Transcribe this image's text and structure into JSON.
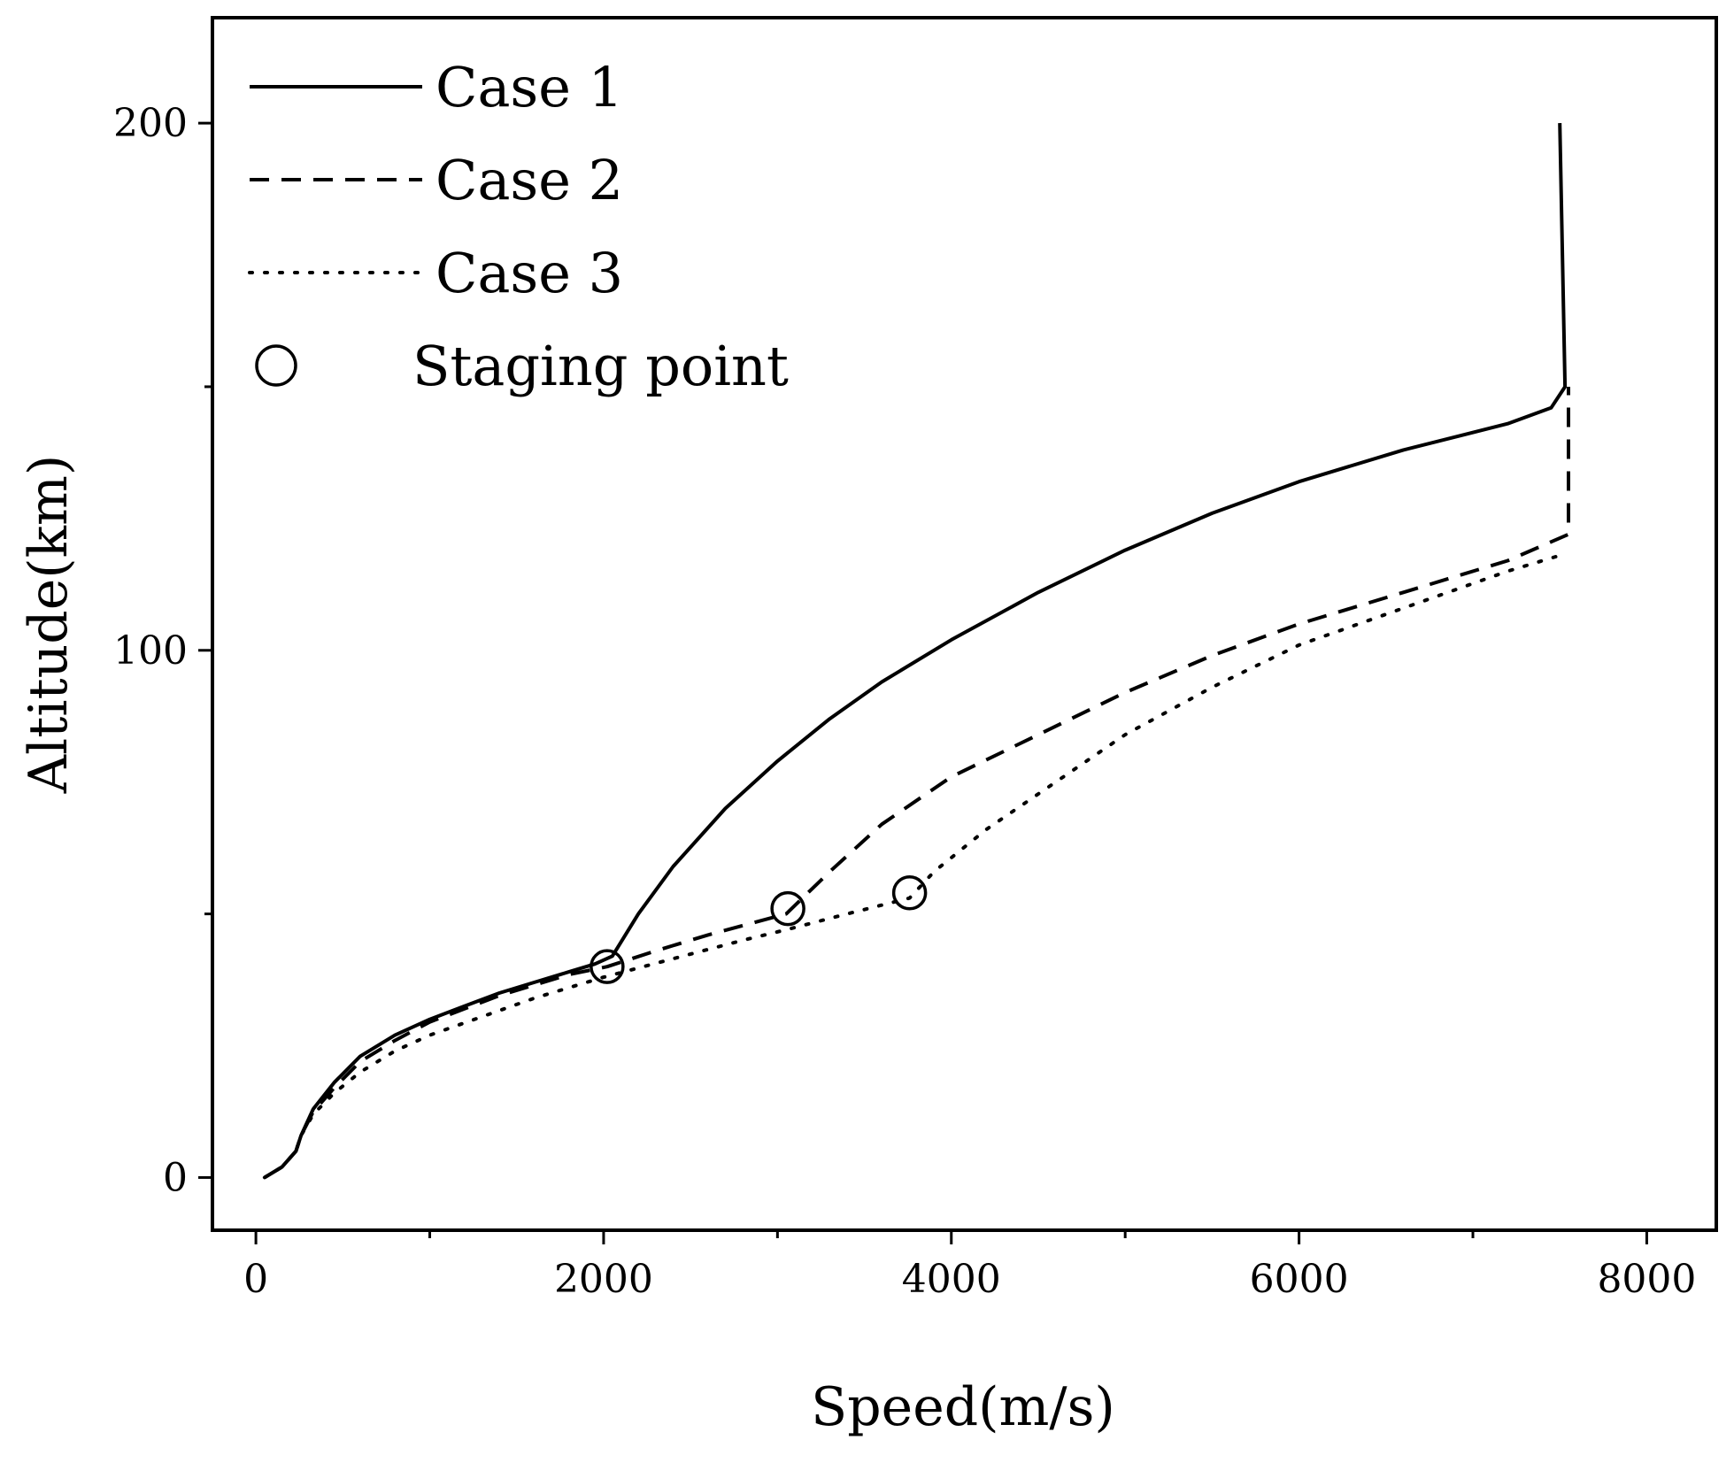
{
  "chart_data": {
    "type": "line",
    "xlabel": "Speed(m/s)",
    "ylabel": "Altitude(km)",
    "xlim": [
      -250,
      8400
    ],
    "ylim": [
      -10,
      220
    ],
    "x_ticks": [
      0,
      2000,
      4000,
      6000,
      8000
    ],
    "x_minor_ticks": [
      1000,
      3000,
      5000,
      7000
    ],
    "y_ticks": [
      0,
      100,
      200
    ],
    "y_minor_ticks": [
      50,
      150
    ],
    "grid": false,
    "legend_position": "top-left",
    "series": [
      {
        "name": "Case 1",
        "style": "solid",
        "x": [
          50,
          150,
          230,
          260,
          330,
          450,
          600,
          800,
          1000,
          1200,
          1400,
          1600,
          1800,
          1950,
          2050,
          2200,
          2400,
          2700,
          3000,
          3300,
          3600,
          4000,
          4500,
          5000,
          5500,
          6000,
          6600,
          7200,
          7450,
          7530,
          7500
        ],
        "y": [
          0,
          2,
          5,
          8,
          13,
          18,
          23,
          27,
          30,
          32.5,
          35,
          37,
          39,
          40.5,
          42,
          50,
          59,
          70,
          79,
          87,
          94,
          102,
          111,
          119,
          126,
          132,
          138,
          143,
          146,
          150,
          200
        ]
      },
      {
        "name": "Case 2",
        "style": "dashed",
        "x": [
          50,
          150,
          230,
          260,
          330,
          450,
          600,
          800,
          1000,
          1200,
          1400,
          1600,
          1800,
          2020,
          2300,
          2600,
          3050,
          3300,
          3600,
          4000,
          4500,
          5000,
          5500,
          6000,
          6600,
          7200,
          7550,
          7550
        ],
        "y": [
          0,
          2,
          5,
          8,
          12.5,
          17,
          22,
          26,
          29.5,
          32,
          34.5,
          36.5,
          38.5,
          40,
          43,
          46,
          50,
          58,
          67,
          76,
          84,
          92,
          99,
          105,
          111,
          117,
          122,
          150
        ]
      },
      {
        "name": "Case 3",
        "style": "dotted",
        "x": [
          50,
          150,
          230,
          260,
          330,
          450,
          600,
          800,
          1000,
          1300,
          1600,
          2000,
          2400,
          2800,
          3050,
          3400,
          3760,
          3900,
          4200,
          4600,
          5000,
          5500,
          6000,
          6600,
          7200,
          7500
        ],
        "y": [
          0,
          2,
          5,
          8,
          12,
          16,
          20,
          24,
          27,
          30.5,
          34,
          38,
          41.5,
          45,
          47,
          50,
          53,
          58,
          66,
          75,
          84,
          93,
          101,
          108,
          115,
          118
        ]
      }
    ],
    "staging_points": {
      "name": "Staging point",
      "x": [
        2020,
        3060,
        3760
      ],
      "y": [
        40,
        51,
        54
      ]
    }
  },
  "legend": {
    "items": [
      "Case 1",
      "Case 2",
      "Case 3",
      "Staging point"
    ]
  }
}
